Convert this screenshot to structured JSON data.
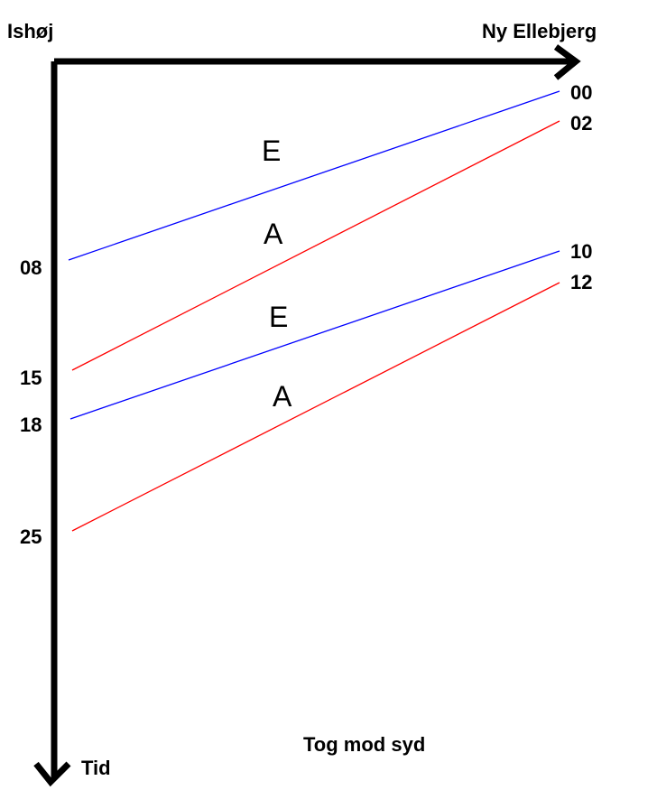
{
  "diagram": {
    "origin_station": "Ishøj",
    "end_station": "Ny Ellebjerg",
    "time_axis_label": "Tid",
    "caption": "Tog mod syd",
    "colors": {
      "E": "#0000ff",
      "A": "#ff0000",
      "axis": "#000000"
    },
    "trains": [
      {
        "line": "E",
        "start_minute": "08",
        "end_minute": "00"
      },
      {
        "line": "A",
        "start_minute": "15",
        "end_minute": "02"
      },
      {
        "line": "E",
        "start_minute": "18",
        "end_minute": "10"
      },
      {
        "line": "A",
        "start_minute": "25",
        "end_minute": "12"
      }
    ]
  }
}
